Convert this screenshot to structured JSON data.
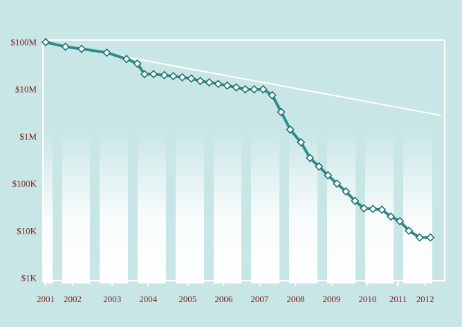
{
  "chart_data": {
    "type": "line",
    "title": "",
    "xlabel": "",
    "ylabel": "",
    "y_scale": "log",
    "ylim": [
      1000,
      100000000
    ],
    "xlim": [
      2001.0,
      2012.0
    ],
    "y_tick_values": [
      1000,
      10000,
      100000,
      1000000,
      10000000,
      100000000
    ],
    "y_tick_labels": [
      "$1K",
      "$10K",
      "$100K",
      "$1M",
      "$10M",
      "$100M"
    ],
    "x_tick_values": [
      2001.0,
      2001.75,
      2002.85,
      2003.85,
      2004.95,
      2005.95,
      2006.95,
      2007.95,
      2008.95,
      2009.95,
      2010.8,
      2011.55
    ],
    "x_tick_labels": [
      "2001",
      "2002",
      "2003",
      "2004",
      "2005",
      "2006",
      "2007",
      "2008",
      "2009",
      "2010",
      "2011",
      "2012"
    ],
    "grid": false,
    "legend": "none",
    "colors": {
      "background": "#c9e6e6",
      "series_line": "#2f8c8c",
      "marker_fill": "#ffffff",
      "marker_stroke": "#236f6f",
      "trend_line": "#ffffff",
      "tick_text": "#7a1f1f"
    },
    "series": [
      {
        "x": [
          2001.0,
          2001.55,
          2002.0,
          2002.7,
          2003.25,
          2003.55,
          2003.75,
          2004.0,
          2004.3,
          2004.55,
          2004.8,
          2005.05,
          2005.3,
          2005.55,
          2005.8,
          2006.05,
          2006.3,
          2006.55,
          2006.8,
          2007.05,
          2007.3,
          2007.55,
          2007.8,
          2008.1,
          2008.35,
          2008.6,
          2008.85,
          2009.1,
          2009.35,
          2009.6,
          2009.85,
          2010.1,
          2010.35,
          2010.6,
          2010.85,
          2011.1,
          2011.4,
          2011.7
        ],
        "y": [
          100000000,
          80000000,
          72000000,
          60000000,
          44000000,
          35000000,
          21000000,
          21000000,
          20000000,
          19000000,
          18000000,
          17000000,
          15000000,
          14000000,
          13000000,
          12000000,
          11000000,
          10000000,
          10000000,
          10000000,
          7500000,
          3300000,
          1400000,
          750000,
          350000,
          230000,
          150000,
          100000,
          68000,
          43000,
          30000,
          29000,
          28000,
          20000,
          16000,
          10000,
          7200,
          7200
        ]
      },
      {
        "x": [
          2001.0,
          2012.0
        ],
        "y": [
          100000000,
          2800000
        ]
      }
    ]
  }
}
